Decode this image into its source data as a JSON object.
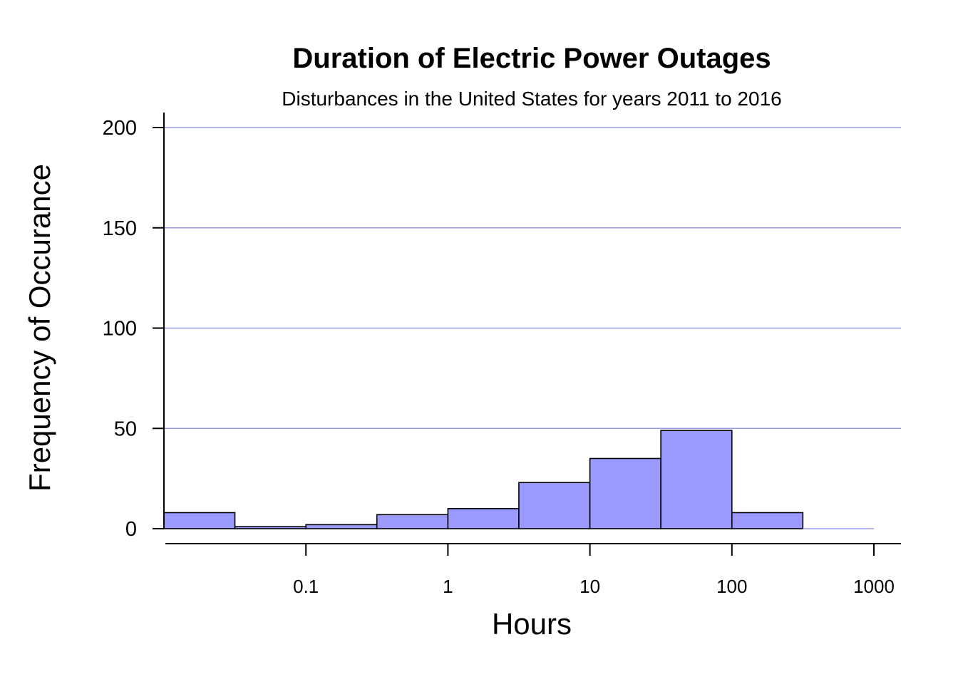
{
  "chart_data": {
    "type": "bar",
    "title": "Duration of Electric Power Outages",
    "subtitle": "Disturbances in the United States for years 2011 to 2016",
    "xlabel": "Hours",
    "ylabel": "Frequency of Occurance",
    "x_scale": "log",
    "xlim": [
      0.01,
      1000
    ],
    "ylim": [
      0,
      200
    ],
    "grid": true,
    "y_ticks": [
      0,
      50,
      100,
      150,
      200
    ],
    "x_ticks": [
      {
        "value": 0.1,
        "label": "0.1"
      },
      {
        "value": 1,
        "label": "1"
      },
      {
        "value": 10,
        "label": "10"
      },
      {
        "value": 100,
        "label": "100"
      },
      {
        "value": 1000,
        "label": "1000"
      }
    ],
    "bins": [
      {
        "from": 0.01,
        "to": 0.0316,
        "count": 8
      },
      {
        "from": 0.0316,
        "to": 0.1,
        "count": 1
      },
      {
        "from": 0.1,
        "to": 0.316,
        "count": 2
      },
      {
        "from": 0.316,
        "to": 1,
        "count": 7
      },
      {
        "from": 1,
        "to": 3.16,
        "count": 10
      },
      {
        "from": 3.16,
        "to": 10,
        "count": 23
      },
      {
        "from": 10,
        "to": 31.6,
        "count": 35
      },
      {
        "from": 31.6,
        "to": 100,
        "count": 49
      },
      {
        "from": 100,
        "to": 316,
        "count": 8
      },
      {
        "from": 316,
        "to": 1000,
        "count": 0
      }
    ],
    "colors": {
      "bar_fill": "#9a9aff",
      "grid": "#9999ee"
    }
  }
}
